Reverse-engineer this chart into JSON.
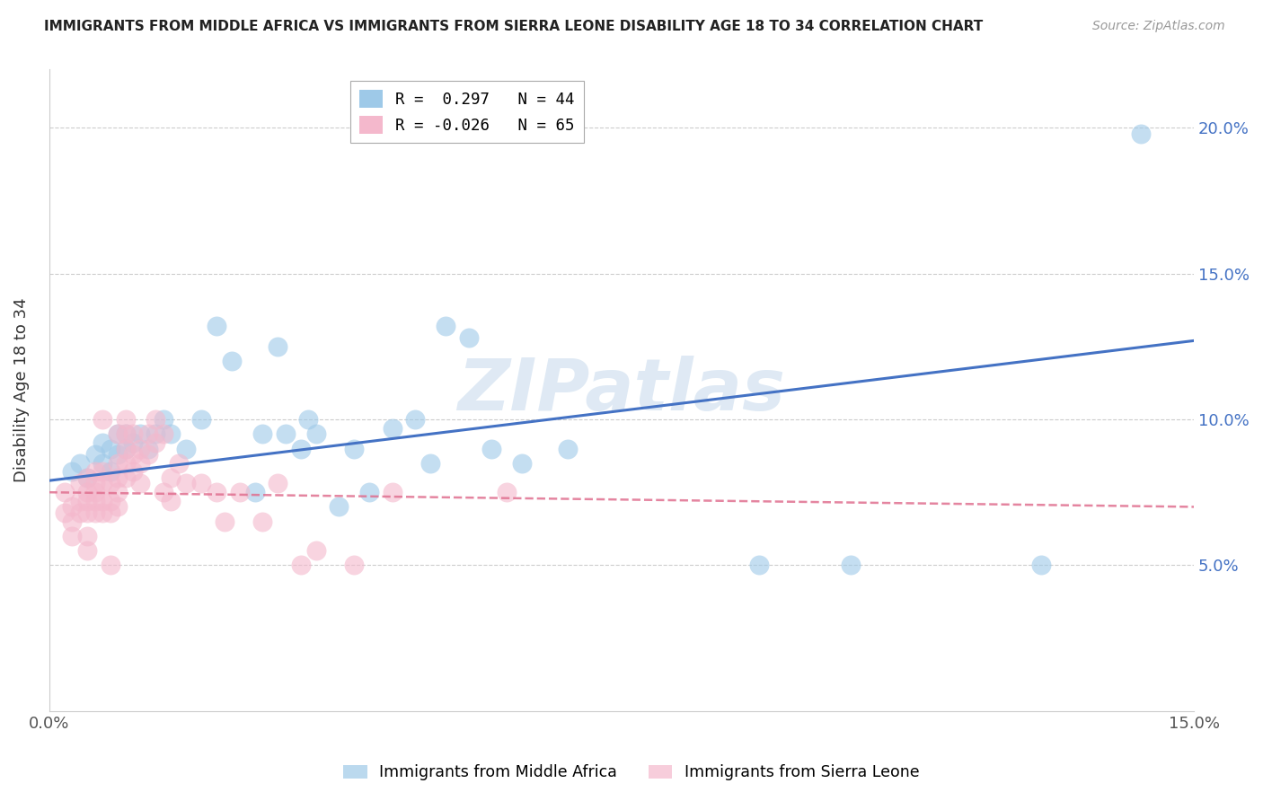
{
  "title": "IMMIGRANTS FROM MIDDLE AFRICA VS IMMIGRANTS FROM SIERRA LEONE DISABILITY AGE 18 TO 34 CORRELATION CHART",
  "source": "Source: ZipAtlas.com",
  "ylabel": "Disability Age 18 to 34",
  "xlim": [
    0.0,
    0.15
  ],
  "ylim": [
    0.0,
    0.22
  ],
  "yticks": [
    0.05,
    0.1,
    0.15,
    0.2
  ],
  "ytick_labels": [
    "5.0%",
    "10.0%",
    "15.0%",
    "20.0%"
  ],
  "legend_entries": [
    {
      "label": "R =  0.297   N = 44",
      "color": "#9ec9e8"
    },
    {
      "label": "R = -0.026   N = 65",
      "color": "#f4b8cc"
    }
  ],
  "blue_color": "#9ec9e8",
  "pink_color": "#f4b8cc",
  "blue_line_color": "#4472c4",
  "pink_line_color": "#e07090",
  "grid_color": "#cccccc",
  "watermark": "ZIPatlas",
  "blue_line": [
    0.0,
    0.079,
    0.15,
    0.127
  ],
  "pink_line": [
    0.0,
    0.075,
    0.15,
    0.07
  ],
  "blue_scatter": [
    [
      0.003,
      0.082
    ],
    [
      0.004,
      0.085
    ],
    [
      0.005,
      0.08
    ],
    [
      0.006,
      0.088
    ],
    [
      0.007,
      0.085
    ],
    [
      0.007,
      0.092
    ],
    [
      0.008,
      0.082
    ],
    [
      0.008,
      0.09
    ],
    [
      0.009,
      0.088
    ],
    [
      0.009,
      0.095
    ],
    [
      0.01,
      0.09
    ],
    [
      0.01,
      0.095
    ],
    [
      0.011,
      0.092
    ],
    [
      0.012,
      0.095
    ],
    [
      0.013,
      0.09
    ],
    [
      0.014,
      0.095
    ],
    [
      0.015,
      0.1
    ],
    [
      0.016,
      0.095
    ],
    [
      0.018,
      0.09
    ],
    [
      0.02,
      0.1
    ],
    [
      0.022,
      0.132
    ],
    [
      0.024,
      0.12
    ],
    [
      0.027,
      0.075
    ],
    [
      0.028,
      0.095
    ],
    [
      0.03,
      0.125
    ],
    [
      0.031,
      0.095
    ],
    [
      0.033,
      0.09
    ],
    [
      0.034,
      0.1
    ],
    [
      0.035,
      0.095
    ],
    [
      0.038,
      0.07
    ],
    [
      0.04,
      0.09
    ],
    [
      0.042,
      0.075
    ],
    [
      0.045,
      0.097
    ],
    [
      0.048,
      0.1
    ],
    [
      0.05,
      0.085
    ],
    [
      0.052,
      0.132
    ],
    [
      0.055,
      0.128
    ],
    [
      0.058,
      0.09
    ],
    [
      0.062,
      0.085
    ],
    [
      0.068,
      0.09
    ],
    [
      0.093,
      0.05
    ],
    [
      0.105,
      0.05
    ],
    [
      0.13,
      0.05
    ],
    [
      0.143,
      0.198
    ]
  ],
  "pink_scatter": [
    [
      0.002,
      0.075
    ],
    [
      0.002,
      0.068
    ],
    [
      0.003,
      0.06
    ],
    [
      0.003,
      0.065
    ],
    [
      0.003,
      0.07
    ],
    [
      0.004,
      0.068
    ],
    [
      0.004,
      0.072
    ],
    [
      0.004,
      0.078
    ],
    [
      0.005,
      0.08
    ],
    [
      0.005,
      0.075
    ],
    [
      0.005,
      0.072
    ],
    [
      0.005,
      0.068
    ],
    [
      0.005,
      0.06
    ],
    [
      0.005,
      0.055
    ],
    [
      0.006,
      0.082
    ],
    [
      0.006,
      0.078
    ],
    [
      0.006,
      0.075
    ],
    [
      0.006,
      0.072
    ],
    [
      0.006,
      0.068
    ],
    [
      0.007,
      0.082
    ],
    [
      0.007,
      0.078
    ],
    [
      0.007,
      0.072
    ],
    [
      0.007,
      0.068
    ],
    [
      0.007,
      0.1
    ],
    [
      0.008,
      0.078
    ],
    [
      0.008,
      0.072
    ],
    [
      0.008,
      0.068
    ],
    [
      0.008,
      0.05
    ],
    [
      0.009,
      0.095
    ],
    [
      0.009,
      0.085
    ],
    [
      0.009,
      0.08
    ],
    [
      0.009,
      0.075
    ],
    [
      0.009,
      0.07
    ],
    [
      0.01,
      0.1
    ],
    [
      0.01,
      0.095
    ],
    [
      0.01,
      0.09
    ],
    [
      0.01,
      0.085
    ],
    [
      0.01,
      0.08
    ],
    [
      0.011,
      0.095
    ],
    [
      0.011,
      0.088
    ],
    [
      0.011,
      0.082
    ],
    [
      0.012,
      0.09
    ],
    [
      0.012,
      0.085
    ],
    [
      0.012,
      0.078
    ],
    [
      0.013,
      0.095
    ],
    [
      0.013,
      0.088
    ],
    [
      0.014,
      0.1
    ],
    [
      0.014,
      0.092
    ],
    [
      0.015,
      0.095
    ],
    [
      0.015,
      0.075
    ],
    [
      0.016,
      0.08
    ],
    [
      0.016,
      0.072
    ],
    [
      0.017,
      0.085
    ],
    [
      0.018,
      0.078
    ],
    [
      0.02,
      0.078
    ],
    [
      0.022,
      0.075
    ],
    [
      0.023,
      0.065
    ],
    [
      0.025,
      0.075
    ],
    [
      0.028,
      0.065
    ],
    [
      0.03,
      0.078
    ],
    [
      0.033,
      0.05
    ],
    [
      0.035,
      0.055
    ],
    [
      0.04,
      0.05
    ],
    [
      0.045,
      0.075
    ],
    [
      0.06,
      0.075
    ]
  ]
}
